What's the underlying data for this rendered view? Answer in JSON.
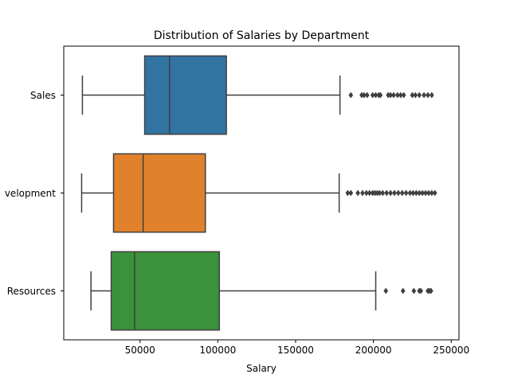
{
  "chart_data": {
    "type": "box",
    "title": "Distribution of Salaries by Department",
    "xlabel": "Salary",
    "ylabel": "",
    "orientation": "horizontal",
    "xlim": [
      1000,
      255000
    ],
    "xticks": [
      50000,
      100000,
      150000,
      200000,
      250000
    ],
    "xtick_labels": [
      "50000",
      "100000",
      "150000",
      "200000",
      "250000"
    ],
    "grid": false,
    "categories": [
      "Sales",
      "Development",
      "Human Resources"
    ],
    "category_labels_visible": [
      "Sales",
      "velopment",
      "Resources"
    ],
    "series": [
      {
        "category": "Sales",
        "color": "#3274a1",
        "whisker_low": 13000,
        "q1": 53000,
        "median": 69000,
        "q3": 105500,
        "whisker_high": 178500,
        "outliers": [
          185500,
          192500,
          194000,
          196000,
          199500,
          201500,
          203500,
          204500,
          209500,
          211000,
          213000,
          215500,
          217500,
          219500,
          225000,
          227000,
          229500,
          232500,
          235000,
          237500
        ]
      },
      {
        "category": "Development",
        "color": "#e1812c",
        "whisker_low": 12500,
        "q1": 33000,
        "median": 52000,
        "q3": 92000,
        "whisker_high": 178000,
        "outliers": [
          183500,
          185500,
          190000,
          193000,
          195500,
          197500,
          199500,
          201000,
          202500,
          204000,
          206000,
          208500,
          211000,
          213500,
          216000,
          218500,
          221000,
          223500,
          225500,
          227500,
          229500,
          231500,
          233500,
          235500,
          237500,
          239500
        ]
      },
      {
        "category": "Human Resources",
        "color": "#3a923a",
        "whisker_low": 18500,
        "q1": 31500,
        "median": 46500,
        "q3": 101000,
        "whisker_high": 201500,
        "outliers": [
          208000,
          219000,
          226000,
          229500,
          230500,
          235000,
          236000,
          237000
        ]
      }
    ]
  }
}
